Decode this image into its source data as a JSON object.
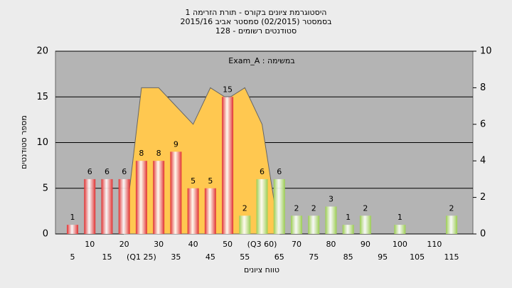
{
  "chart_data": {
    "type": "bar",
    "title": "היסטוגרמת ציונים בקורס - תורת הזרימה 1",
    "subtitle": "בסמסטר  (02/2015)  סמסטר אביב 2015/16",
    "subtitle2": "סטודנטים רשומים - 128",
    "annotation": "במשימה : Exam_A",
    "x_label": "טווח ציונים",
    "y_label": "מספר סטודנטים",
    "categories": [
      "5",
      "10",
      "15",
      "20",
      "(Q1 25)",
      "30",
      "35",
      "40",
      "45",
      "50",
      "55",
      "(Q3 60)",
      "65",
      "70",
      "75",
      "80",
      "85",
      "90",
      "95",
      "100",
      "105",
      "110",
      "115"
    ],
    "series": [
      {
        "color": "#e03030",
        "values": [
          1,
          6,
          6,
          6,
          8,
          8,
          9,
          5,
          5,
          15,
          null,
          null,
          null,
          null,
          null,
          null,
          null,
          null,
          null,
          null,
          null,
          null,
          null
        ]
      },
      {
        "color": "#9acd50",
        "values": [
          null,
          null,
          null,
          null,
          null,
          null,
          null,
          null,
          null,
          null,
          2,
          6,
          6,
          2,
          2,
          3,
          1,
          2,
          0,
          1,
          0,
          0,
          2
        ]
      },
      {
        "color": "#ffc850",
        "axis": "y2",
        "area": true,
        "values": [
          null,
          null,
          null,
          0,
          8,
          8,
          7,
          6,
          8,
          7.4,
          8,
          6,
          0,
          null,
          null,
          null,
          null,
          null,
          null,
          null,
          null,
          null,
          null
        ]
      }
    ],
    "ylim": [
      0,
      20
    ],
    "yticks": [
      0,
      5,
      10,
      15,
      20
    ],
    "y2lim": [
      0,
      10
    ],
    "y2ticks": [
      0,
      2,
      4,
      6,
      8,
      10
    ],
    "grid": true
  }
}
